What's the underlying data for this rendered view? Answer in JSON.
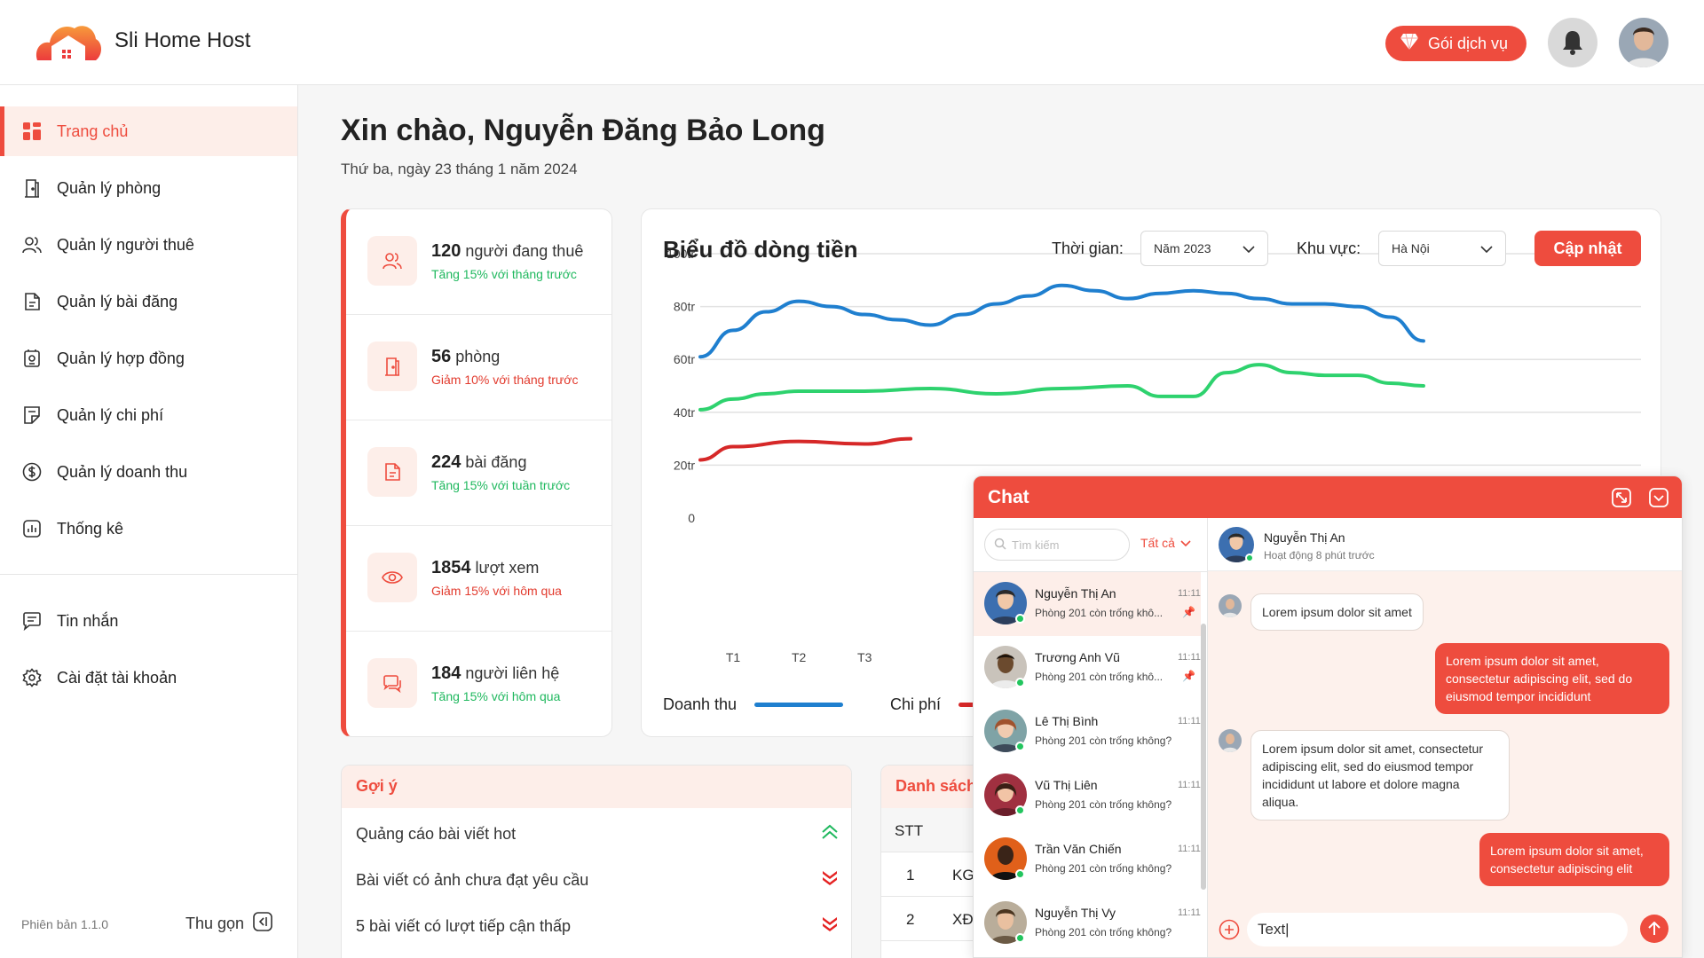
{
  "header": {
    "brand": "Sli Home Host",
    "plan_button": "Gói dịch vụ",
    "brand_color": "#ee4c3e"
  },
  "sidebar": {
    "items": [
      {
        "label": "Trang chủ",
        "icon": "dashboard-icon",
        "active": true
      },
      {
        "label": "Quản lý phòng",
        "icon": "door-icon"
      },
      {
        "label": "Quản lý người thuê",
        "icon": "users-icon"
      },
      {
        "label": "Quản lý bài đăng",
        "icon": "document-icon"
      },
      {
        "label": "Quản lý hợp đồng",
        "icon": "contract-icon"
      },
      {
        "label": "Quản lý chi phí",
        "icon": "receipt-icon"
      },
      {
        "label": "Quản lý doanh thu",
        "icon": "dollar-icon"
      },
      {
        "label": "Thống kê",
        "icon": "chart-icon"
      }
    ],
    "secondary": [
      {
        "label": "Tin nhắn",
        "icon": "message-icon"
      },
      {
        "label": "Cài đặt tài khoản",
        "icon": "settings-icon"
      }
    ],
    "version": "Phiên bản 1.1.0",
    "collapse_label": "Thu gọn"
  },
  "greeting": {
    "title": "Xin chào, Nguyễn Đăng Bảo Long",
    "date": "Thứ ba, ngày 23 tháng 1 năm 2024"
  },
  "stats": [
    {
      "value": "120",
      "unit": "người đang thuê",
      "change": "Tăng 15% với tháng trước",
      "trend": "up",
      "icon": "users-icon"
    },
    {
      "value": "56",
      "unit": "phòng",
      "change": "Giảm 10% với tháng trước",
      "trend": "down",
      "icon": "door-icon"
    },
    {
      "value": "224",
      "unit": "bài đăng",
      "change": "Tăng 15% với tuần trước",
      "trend": "up",
      "icon": "document-icon"
    },
    {
      "value": "1854",
      "unit": "lượt xem",
      "change": "Giảm 15% với hôm qua",
      "trend": "down",
      "icon": "eye-icon"
    },
    {
      "value": "184",
      "unit": "người liên hệ",
      "change": "Tăng 15% với hôm qua",
      "trend": "up",
      "icon": "contact-icon"
    }
  ],
  "chart_card": {
    "title": "Biểu đồ dòng tiền",
    "time_label": "Thời gian:",
    "time_value": "Năm 2023",
    "region_label": "Khu vực:",
    "region_value": "Hà Nội",
    "update_button": "Cập nhật"
  },
  "chart_data": {
    "type": "line",
    "y_ticks": [
      "0",
      "20tr",
      "40tr",
      "60tr",
      "80tr",
      "100tr"
    ],
    "ylim": [
      0,
      100
    ],
    "visible_x_ticks": [
      "T1",
      "T2",
      "T3"
    ],
    "grid": true,
    "legend_placement": "bottom",
    "series": [
      {
        "name": "Doanh thu",
        "color": "#1f7fcf",
        "points": [
          [
            0.5,
            61
          ],
          [
            1,
            71
          ],
          [
            1.5,
            78
          ],
          [
            2,
            82
          ],
          [
            2.5,
            80
          ],
          [
            3,
            77
          ],
          [
            3.5,
            75
          ],
          [
            4,
            73
          ],
          [
            4.5,
            77
          ],
          [
            5,
            81
          ],
          [
            5.5,
            84
          ],
          [
            6,
            88
          ],
          [
            6.5,
            86
          ],
          [
            7,
            83
          ],
          [
            7.5,
            85
          ],
          [
            8,
            86
          ],
          [
            8.5,
            85
          ],
          [
            9,
            83
          ],
          [
            9.5,
            81
          ],
          [
            10,
            81
          ],
          [
            10.5,
            80
          ],
          [
            11,
            76
          ],
          [
            11.5,
            67
          ]
        ]
      },
      {
        "name": "Chi phí",
        "color": "#d62828",
        "points": [
          [
            0.5,
            22
          ],
          [
            1,
            27
          ],
          [
            2,
            29
          ],
          [
            3,
            28
          ],
          [
            3.7,
            30
          ]
        ]
      },
      {
        "name": "",
        "color": "#2ed26e",
        "points": [
          [
            0.5,
            41
          ],
          [
            1,
            45
          ],
          [
            1.5,
            47
          ],
          [
            2,
            48
          ],
          [
            3,
            48
          ],
          [
            4,
            49
          ],
          [
            5,
            47
          ],
          [
            6,
            49
          ],
          [
            7,
            50
          ],
          [
            7.5,
            46
          ],
          [
            8,
            46
          ],
          [
            8.5,
            55
          ],
          [
            9,
            58
          ],
          [
            9.5,
            55
          ],
          [
            10,
            54
          ],
          [
            10.5,
            54
          ],
          [
            11,
            51
          ],
          [
            11.5,
            50
          ]
        ]
      }
    ]
  },
  "suggestions": {
    "title": "Gợi ý",
    "items": [
      {
        "text": "Quảng cáo bài viết hot",
        "priority": "up"
      },
      {
        "text": "Bài viết có ảnh chưa đạt yêu cầu",
        "priority": "high"
      },
      {
        "text": "5 bài viết có lượt tiếp cận thấp",
        "priority": "high"
      }
    ]
  },
  "list_card": {
    "title": "Danh sách",
    "header_stt": "STT",
    "rows": [
      {
        "stt": "1",
        "code": "KG"
      },
      {
        "stt": "2",
        "code": "XĐ"
      }
    ]
  },
  "chat": {
    "title": "Chat",
    "search_placeholder": "Tìm kiếm",
    "filter": "Tất cả",
    "conversations": [
      {
        "name": "Nguyễn Thị An",
        "time": "11:11",
        "preview": "Phòng 201 còn trống khô...",
        "pinned": true,
        "selected": true,
        "avatar_color": "#3c6fb0"
      },
      {
        "name": "Trương Anh Vũ",
        "time": "11:11",
        "preview": "Phòng 201 còn trống khô...",
        "pinned": true,
        "avatar_color": "#6b4a2e"
      },
      {
        "name": "Lê Thị Bình",
        "time": "11:11",
        "preview": "Phòng 201 còn trống không?",
        "avatar_color": "#b07a5a"
      },
      {
        "name": "Vũ Thị Liên",
        "time": "11:11",
        "preview": "Phòng 201 còn trống không?",
        "avatar_color": "#a03040"
      },
      {
        "name": "Trần Văn Chiến",
        "time": "11:11",
        "preview": "Phòng 201 còn trống không?",
        "avatar_color": "#e0601a"
      },
      {
        "name": "Nguyễn Thị Vy",
        "time": "11:11",
        "preview": "Phòng 201 còn trống không?",
        "avatar_color": "#7a6a55"
      }
    ],
    "active_user": {
      "name": "Nguyễn Thị An",
      "status": "Hoạt động 8 phút trước"
    },
    "messages": [
      {
        "dir": "in",
        "text": "Lorem ipsum dolor sit amet"
      },
      {
        "dir": "out",
        "text": "Lorem ipsum dolor sit amet, consectetur adipiscing elit, sed do eiusmod tempor incididunt"
      },
      {
        "dir": "in",
        "text": "Lorem ipsum dolor sit amet, consectetur adipiscing elit, sed do eiusmod tempor incididunt ut labore et dolore magna aliqua."
      },
      {
        "dir": "out",
        "text": "Lorem ipsum dolor sit amet, consectetur adipiscing elit"
      }
    ],
    "input_value": "Text|"
  }
}
